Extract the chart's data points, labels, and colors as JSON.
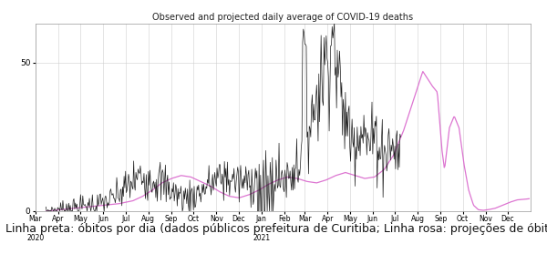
{
  "title": "Observed and projected daily average of COVID-19 deaths",
  "title_fontsize": 7.0,
  "yticks": [
    0,
    50
  ],
  "bg_color": "#ffffff",
  "grid_color": "#d0d0d0",
  "observed_color": "#111111",
  "projected_color": "#d966cc",
  "caption": "Linha preta: óbitos por dia (dados públicos prefeitura de Curitiba; Linha rosa: projeções de óbitos diários para Curitiba.",
  "caption_fontsize": 9.0,
  "ylim": [
    0,
    63
  ]
}
